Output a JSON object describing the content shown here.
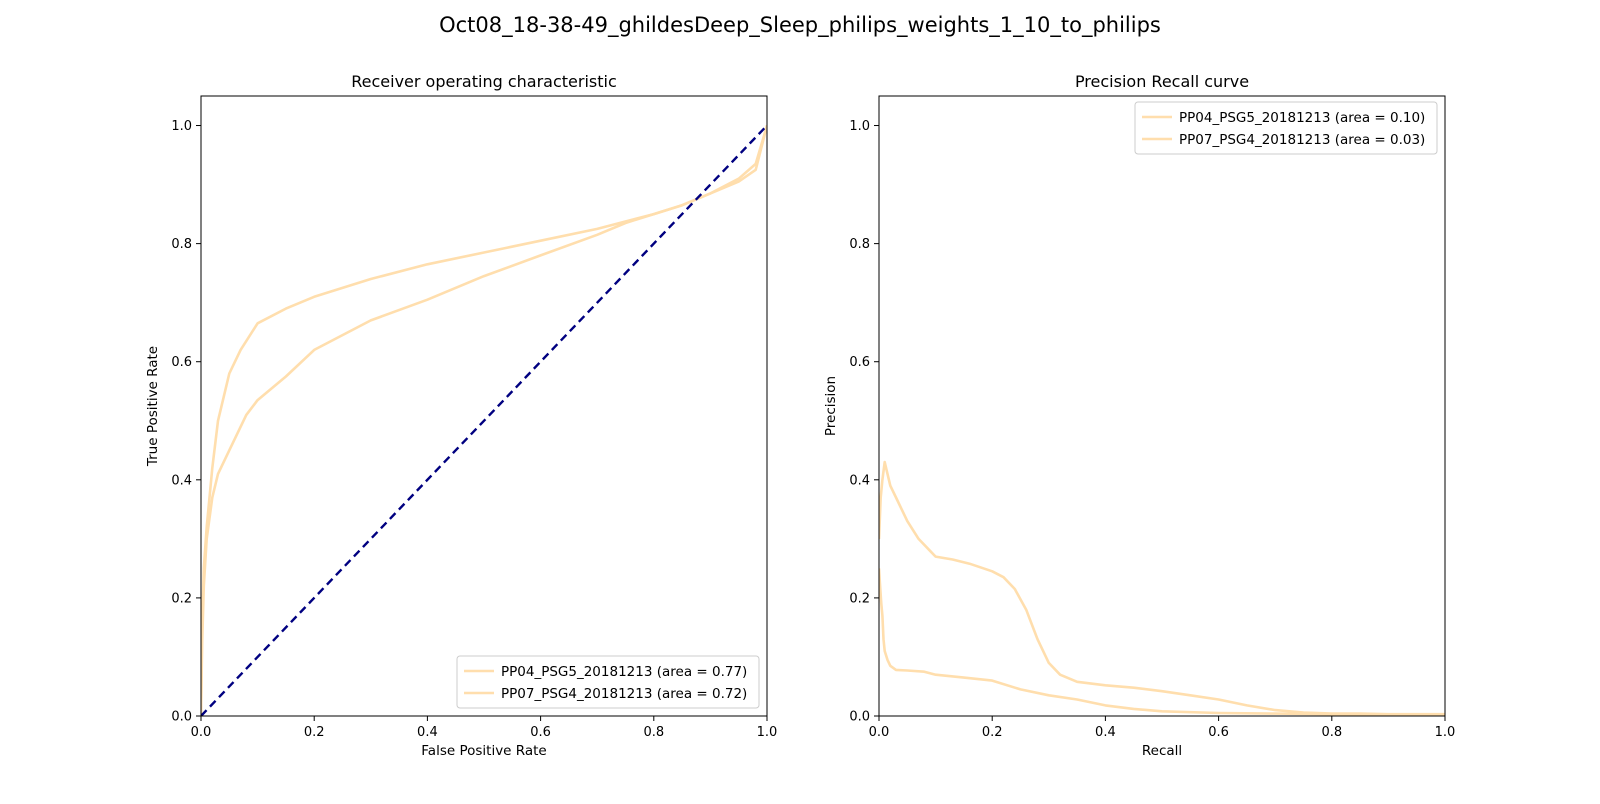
{
  "figure": {
    "suptitle": "Oct08_18-38-49_ghildesDeep_Sleep_philips_weights_1_10_to_philips"
  },
  "chart_data": [
    {
      "type": "line",
      "title": "Receiver operating characteristic",
      "xlabel": "False Positive Rate",
      "ylabel": "True Positive Rate",
      "xlim": [
        0.0,
        1.0
      ],
      "ylim": [
        0.0,
        1.05
      ],
      "xticks": [
        "0.0",
        "0.2",
        "0.4",
        "0.6",
        "0.8",
        "1.0"
      ],
      "yticks": [
        "0.0",
        "0.2",
        "0.4",
        "0.6",
        "0.8",
        "1.0"
      ],
      "grid": false,
      "legend_position": "lower-right",
      "series": [
        {
          "name": "PP04_PSG5_20181213 (area = 0.77)",
          "color": "#ffdead",
          "x": [
            0.0,
            0.002,
            0.005,
            0.01,
            0.02,
            0.03,
            0.05,
            0.07,
            0.1,
            0.15,
            0.2,
            0.3,
            0.4,
            0.5,
            0.6,
            0.7,
            0.8,
            0.85,
            0.9,
            0.95,
            0.98,
            1.0
          ],
          "y": [
            0.0,
            0.15,
            0.25,
            0.32,
            0.42,
            0.5,
            0.58,
            0.62,
            0.665,
            0.69,
            0.71,
            0.74,
            0.765,
            0.785,
            0.805,
            0.825,
            0.85,
            0.865,
            0.885,
            0.91,
            0.935,
            1.0
          ]
        },
        {
          "name": "PP07_PSG4_20181213 (area = 0.72)",
          "color": "#ffdead",
          "x": [
            0.0,
            0.002,
            0.005,
            0.01,
            0.02,
            0.03,
            0.05,
            0.08,
            0.1,
            0.15,
            0.2,
            0.3,
            0.4,
            0.5,
            0.6,
            0.7,
            0.75,
            0.8,
            0.85,
            0.9,
            0.95,
            0.98,
            1.0
          ],
          "y": [
            0.0,
            0.12,
            0.22,
            0.3,
            0.37,
            0.41,
            0.45,
            0.51,
            0.535,
            0.575,
            0.62,
            0.67,
            0.705,
            0.745,
            0.78,
            0.815,
            0.835,
            0.85,
            0.865,
            0.885,
            0.905,
            0.925,
            1.0
          ]
        },
        {
          "name": "",
          "color": "#000080",
          "dashed": true,
          "x": [
            0.0,
            1.0
          ],
          "y": [
            0.0,
            1.0
          ]
        }
      ]
    },
    {
      "type": "line",
      "title": "Precision Recall curve",
      "xlabel": "Recall",
      "ylabel": "Precision",
      "xlim": [
        0.0,
        1.0
      ],
      "ylim": [
        0.0,
        1.05
      ],
      "xticks": [
        "0.0",
        "0.2",
        "0.4",
        "0.6",
        "0.8",
        "1.0"
      ],
      "yticks": [
        "0.0",
        "0.2",
        "0.4",
        "0.6",
        "0.8",
        "1.0"
      ],
      "grid": false,
      "legend_position": "upper-right",
      "series": [
        {
          "name": "PP04_PSG5_20181213 (area = 0.10)",
          "color": "#ffdead",
          "x": [
            0.0,
            0.003,
            0.006,
            0.01,
            0.015,
            0.02,
            0.03,
            0.05,
            0.07,
            0.09,
            0.1,
            0.13,
            0.16,
            0.2,
            0.22,
            0.24,
            0.26,
            0.28,
            0.3,
            0.32,
            0.35,
            0.4,
            0.45,
            0.5,
            0.55,
            0.6,
            0.65,
            0.7,
            0.75,
            0.8,
            0.85,
            0.9,
            0.95,
            1.0
          ],
          "y": [
            0.3,
            0.37,
            0.4,
            0.43,
            0.41,
            0.39,
            0.37,
            0.33,
            0.3,
            0.28,
            0.27,
            0.265,
            0.258,
            0.245,
            0.235,
            0.215,
            0.18,
            0.13,
            0.09,
            0.07,
            0.058,
            0.052,
            0.048,
            0.042,
            0.035,
            0.028,
            0.018,
            0.01,
            0.006,
            0.004,
            0.004,
            0.003,
            0.003,
            0.003
          ]
        },
        {
          "name": "PP07_PSG4_20181213 (area = 0.03)",
          "color": "#ffdead",
          "x": [
            0.0,
            0.002,
            0.004,
            0.006,
            0.008,
            0.01,
            0.015,
            0.02,
            0.03,
            0.05,
            0.08,
            0.1,
            0.15,
            0.2,
            0.25,
            0.3,
            0.35,
            0.4,
            0.45,
            0.5,
            0.6,
            0.7,
            0.8,
            0.9,
            1.0
          ],
          "y": [
            0.25,
            0.22,
            0.19,
            0.17,
            0.13,
            0.11,
            0.095,
            0.085,
            0.078,
            0.077,
            0.075,
            0.07,
            0.065,
            0.06,
            0.045,
            0.035,
            0.028,
            0.018,
            0.012,
            0.008,
            0.005,
            0.004,
            0.003,
            0.002,
            0.002
          ]
        }
      ]
    }
  ]
}
